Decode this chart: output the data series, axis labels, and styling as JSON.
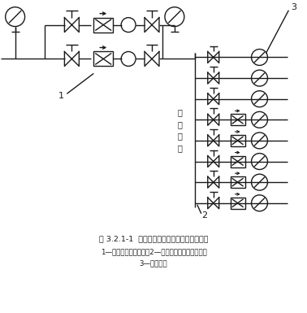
{
  "title_line1": "图 3.2.1-1  直接作用式差压减压阀设置示意图",
  "title_line2": "1—稳压式减压阀阀组；2—直接作用式差压减压阀；",
  "title_line3": "3—分户水表",
  "label_1": "1",
  "label_2": "2",
  "label_3": "3",
  "label_zone": "减\n压\n分\n区",
  "bg_color": "#ffffff",
  "line_color": "#1a1a1a",
  "fig_width": 3.78,
  "fig_height": 3.85,
  "dpi": 100
}
